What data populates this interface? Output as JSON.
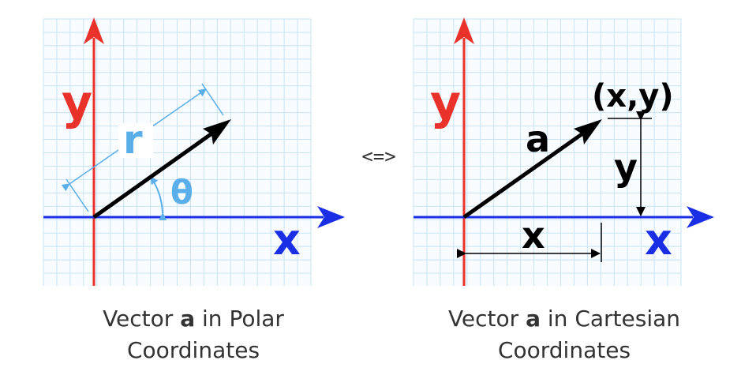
{
  "polar": {
    "axis_y": "y",
    "axis_x": "x",
    "length_label": "r",
    "angle_label": "θ",
    "caption_prefix": "Vector",
    "caption_bold": "a",
    "caption_suffix": "in Polar",
    "caption_line2": "Coordinates"
  },
  "equivalence": "<=>",
  "cartesian": {
    "axis_y": "y",
    "axis_x": "x",
    "vector_label": "a",
    "point_label": "(x,y)",
    "y_measure": "y",
    "x_measure": "x",
    "caption_prefix": "Vector",
    "caption_bold": "a",
    "caption_suffix": "in Cartesian",
    "caption_line2": "Coordinates"
  },
  "colors": {
    "y_axis": "#e8322a",
    "x_axis": "#1a2ee6",
    "vector": "#000000",
    "polar_annotation": "#5aaeea",
    "grid": "#c9e3f5",
    "caption_text": "#333333"
  }
}
